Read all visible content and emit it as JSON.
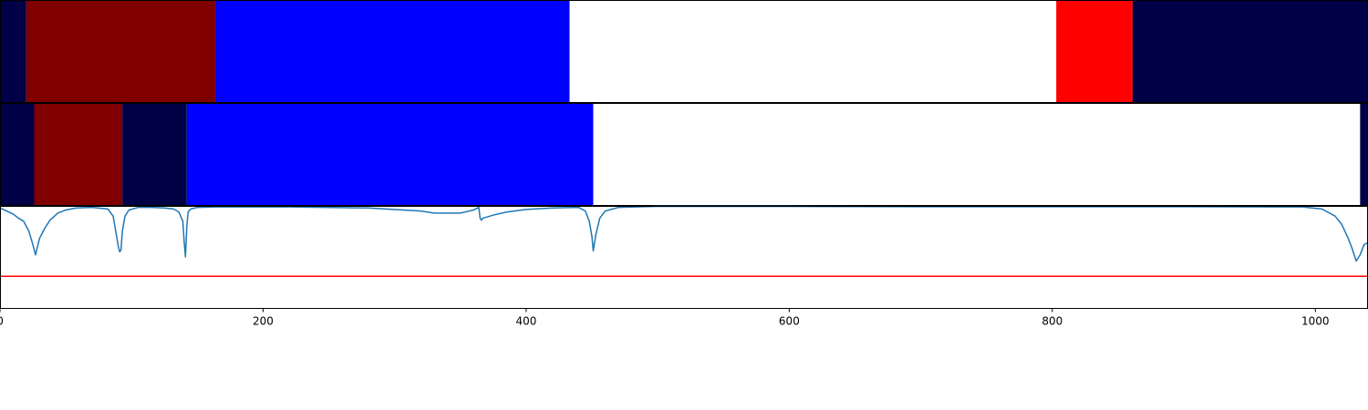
{
  "chart_data": [
    {
      "type": "bar",
      "panel": "segmentation-top",
      "xlim": [
        0,
        1040
      ],
      "segments": [
        {
          "start": 0,
          "end": 20,
          "color": "#000046"
        },
        {
          "start": 20,
          "end": 164,
          "color": "#800000"
        },
        {
          "start": 164,
          "end": 433,
          "color": "#0000ff"
        },
        {
          "start": 433,
          "end": 803,
          "color": "#ffffff"
        },
        {
          "start": 803,
          "end": 861,
          "color": "#ff0000"
        },
        {
          "start": 861,
          "end": 1040,
          "color": "#000046"
        }
      ]
    },
    {
      "type": "bar",
      "panel": "segmentation-middle",
      "xlim": [
        0,
        1040
      ],
      "segments": [
        {
          "start": 0,
          "end": 26,
          "color": "#000046"
        },
        {
          "start": 26,
          "end": 93,
          "color": "#800000"
        },
        {
          "start": 93,
          "end": 142,
          "color": "#000046"
        },
        {
          "start": 142,
          "end": 451,
          "color": "#0000ff"
        },
        {
          "start": 451,
          "end": 1034,
          "color": "#ffffff"
        },
        {
          "start": 1034,
          "end": 1040,
          "color": "#000046"
        }
      ]
    },
    {
      "type": "line",
      "panel": "confidence",
      "xlim": [
        0,
        1040
      ],
      "ylim": [
        0,
        1
      ],
      "xticks": [
        0,
        200,
        400,
        600,
        800,
        1000
      ],
      "threshold": 0.31,
      "line_color": "#1f77b4",
      "threshold_color": "#ff0000",
      "series": [
        {
          "x": [
            0,
            5,
            10,
            14,
            18,
            22,
            25,
            27,
            30,
            34,
            38,
            44,
            50,
            58,
            70,
            82,
            86,
            88,
            90,
            91,
            92,
            93,
            95,
            98,
            105,
            115,
            125,
            132,
            136,
            139,
            140,
            141,
            142,
            143,
            145,
            150,
            165,
            220,
            280,
            320,
            330,
            340,
            350,
            360,
            364,
            365,
            366,
            367,
            370,
            375,
            385,
            400,
            420,
            440,
            445,
            448,
            450,
            451,
            453,
            456,
            460,
            470,
            500,
            600,
            700,
            800,
            900,
            990,
            1005,
            1015,
            1020,
            1025,
            1028,
            1031,
            1034,
            1037,
            1040
          ],
          "y": [
            0.98,
            0.95,
            0.92,
            0.88,
            0.85,
            0.75,
            0.62,
            0.52,
            0.68,
            0.78,
            0.86,
            0.93,
            0.96,
            0.98,
            0.985,
            0.97,
            0.9,
            0.75,
            0.6,
            0.55,
            0.57,
            0.75,
            0.9,
            0.96,
            0.985,
            0.985,
            0.98,
            0.97,
            0.94,
            0.85,
            0.65,
            0.5,
            0.8,
            0.94,
            0.97,
            0.985,
            0.99,
            0.99,
            0.98,
            0.95,
            0.93,
            0.93,
            0.93,
            0.96,
            0.985,
            0.88,
            0.86,
            0.88,
            0.89,
            0.91,
            0.94,
            0.965,
            0.98,
            0.985,
            0.95,
            0.85,
            0.7,
            0.56,
            0.72,
            0.88,
            0.95,
            0.985,
            0.995,
            0.995,
            0.992,
            0.992,
            0.992,
            0.99,
            0.97,
            0.9,
            0.82,
            0.68,
            0.58,
            0.46,
            0.52,
            0.62,
            0.64
          ]
        }
      ]
    }
  ]
}
